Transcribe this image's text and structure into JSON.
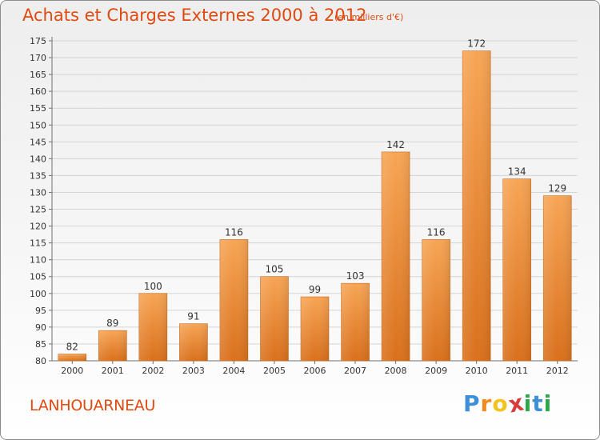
{
  "header": {
    "title": "Achats et Charges Externes 2000 à 2012",
    "unit": "(en milliers d'€)"
  },
  "footer": {
    "commune": "LANHOUARNEAU"
  },
  "logo": {
    "letters": [
      "P",
      "r",
      "o",
      "x",
      "i",
      "t",
      "i"
    ],
    "colors": [
      "#3d8fd8",
      "#f28a1e",
      "#f2c21e",
      "#d83d3d",
      "#2ea84a",
      "#3d8fd8",
      "#2ea84a"
    ]
  },
  "colors": {
    "bar_top": "#f7a555",
    "bar_bottom": "#d9701c",
    "bar_edge": "#c86a1e",
    "axis": "#707070",
    "grid": "#d4d4d4",
    "text": "#333333",
    "title": "#de4a10"
  },
  "chart_data": {
    "type": "bar",
    "title": "Achats et Charges Externes 2000 à 2012",
    "xlabel": "",
    "ylabel": "",
    "categories": [
      "2000",
      "2001",
      "2002",
      "2003",
      "2004",
      "2005",
      "2006",
      "2007",
      "2008",
      "2009",
      "2010",
      "2011",
      "2012"
    ],
    "values": [
      82,
      89,
      100,
      91,
      116,
      105,
      99,
      103,
      142,
      116,
      172,
      134,
      129
    ],
    "ylim": [
      80,
      175
    ],
    "yticks": [
      80,
      85,
      90,
      95,
      100,
      105,
      110,
      115,
      120,
      125,
      130,
      135,
      140,
      145,
      150,
      155,
      160,
      165,
      170,
      175
    ],
    "grid": true,
    "legend": "none",
    "data_labels": true
  }
}
